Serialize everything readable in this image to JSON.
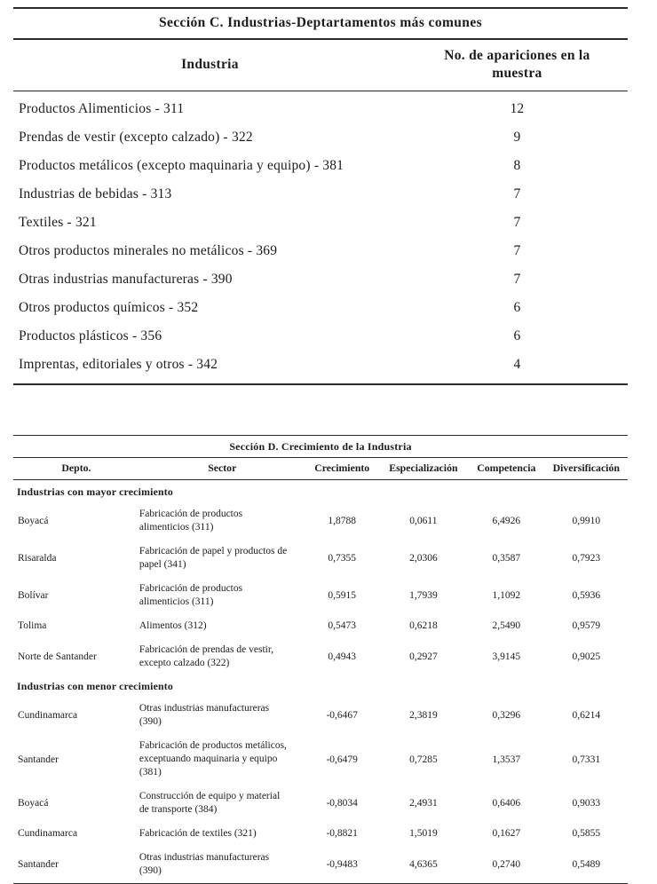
{
  "table_c": {
    "title": "Sección C. Industrias-Deptartamentos más comunes",
    "headers": {
      "industry": "Industria",
      "count": "No. de apariciones en la muestra"
    },
    "rows": [
      {
        "industry": "Productos Alimenticios - 311",
        "count": "12"
      },
      {
        "industry": "Prendas de vestir (excepto calzado) - 322",
        "count": "9"
      },
      {
        "industry": "Productos metálicos (excepto maquinaria y equipo) - 381",
        "count": "8"
      },
      {
        "industry": "Industrias de bebidas - 313",
        "count": "7"
      },
      {
        "industry": "Textiles - 321",
        "count": "7"
      },
      {
        "industry": "Otros productos minerales no metálicos - 369",
        "count": "7"
      },
      {
        "industry": "Otras industrias manufactureras - 390",
        "count": "7"
      },
      {
        "industry": "Otros productos químicos - 352",
        "count": "6"
      },
      {
        "industry": "Productos plásticos - 356",
        "count": "6"
      },
      {
        "industry": "Imprentas, editoriales y otros - 342",
        "count": "4"
      }
    ]
  },
  "table_d": {
    "title": "Sección D. Crecimiento de la Industria",
    "headers": {
      "depto": "Depto.",
      "sector": "Sector",
      "crecimiento": "Crecimiento",
      "especializacion": "Especialización",
      "competencia": "Competencia",
      "diversificacion": "Diversificación"
    },
    "groups": [
      {
        "label": "Industrias con mayor crecimiento",
        "rows": [
          {
            "depto": "Boyacá",
            "sector": "Fabricación de productos alimenticios (311)",
            "crecimiento": "1,8788",
            "especializacion": "0,0611",
            "competencia": "6,4926",
            "diversificacion": "0,9910"
          },
          {
            "depto": "Risaralda",
            "sector": "Fabricación de papel y productos de papel (341)",
            "crecimiento": "0,7355",
            "especializacion": "2,0306",
            "competencia": "0,3587",
            "diversificacion": "0,7923"
          },
          {
            "depto": "Bolívar",
            "sector": "Fabricación de productos alimenticios (311)",
            "crecimiento": "0,5915",
            "especializacion": "1,7939",
            "competencia": "1,1092",
            "diversificacion": "0,5936"
          },
          {
            "depto": "Tolima",
            "sector": "Alimentos (312)",
            "crecimiento": "0,5473",
            "especializacion": "0,6218",
            "competencia": "2,5490",
            "diversificacion": "0,9579"
          },
          {
            "depto": "Norte de Santander",
            "sector": "Fabricación de prendas de vestir, excepto calzado (322)",
            "crecimiento": "0,4943",
            "especializacion": "0,2927",
            "competencia": "3,9145",
            "diversificacion": "0,9025"
          }
        ]
      },
      {
        "label": "Industrias con menor crecimiento",
        "rows": [
          {
            "depto": "Cundinamarca",
            "sector": "Otras industrias manufactureras (390)",
            "crecimiento": "-0,6467",
            "especializacion": "2,3819",
            "competencia": "0,3296",
            "diversificacion": "0,6214"
          },
          {
            "depto": "Santander",
            "sector": "Fabricación de productos metálicos, exceptuando maquinaria y equipo (381)",
            "crecimiento": "-0,6479",
            "especializacion": "0,7285",
            "competencia": "1,3537",
            "diversificacion": "0,7331"
          },
          {
            "depto": "Boyacá",
            "sector": "Construcción de equipo y material de transporte (384)",
            "crecimiento": "-0,8034",
            "especializacion": "2,4931",
            "competencia": "0,6406",
            "diversificacion": "0,9033"
          },
          {
            "depto": "Cundinamarca",
            "sector": "Fabricación de textiles (321)",
            "crecimiento": "-0,8821",
            "especializacion": "1,5019",
            "competencia": "0,1627",
            "diversificacion": "0,5855"
          },
          {
            "depto": "Santander",
            "sector": "Otras industrias manufactureras (390)",
            "crecimiento": "-0,9483",
            "especializacion": "4,6365",
            "competencia": "0,2740",
            "diversificacion": "0,5489"
          }
        ]
      }
    ]
  }
}
